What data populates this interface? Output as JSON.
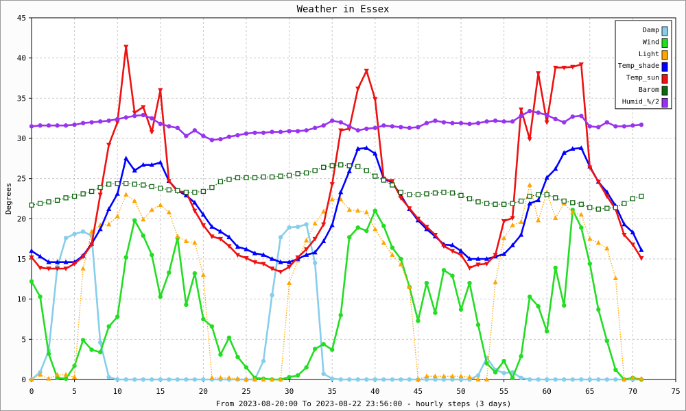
{
  "chart_data": {
    "type": "line",
    "title": "Weather in Essex",
    "xlabel": "From 2023-08-20:00 To 2023-08-22 23:56:00 - hourly steps (3 days)",
    "ylabel": "Degrees",
    "xlim": [
      0,
      75
    ],
    "ylim": [
      0,
      45
    ],
    "x_ticks": [
      0,
      5,
      10,
      15,
      20,
      25,
      30,
      35,
      40,
      45,
      50,
      55,
      60,
      65,
      70,
      75
    ],
    "y_ticks": [
      0,
      5,
      10,
      15,
      20,
      25,
      30,
      35,
      40,
      45
    ],
    "grid": true,
    "legend_position": "top-right",
    "series": [
      {
        "name": "Damp",
        "color": "#87ceeb",
        "marker": "circle",
        "style": "solid",
        "values": [
          0,
          0.9,
          3.6,
          14.0,
          17.6,
          18.1,
          18.4,
          17.9,
          4.6,
          0.3,
          0,
          0,
          0,
          0,
          0,
          0,
          0,
          0,
          0,
          0,
          0,
          0,
          0,
          0,
          0,
          0,
          0,
          2.3,
          10.5,
          17.7,
          18.9,
          19.0,
          19.3,
          14.5,
          0.7,
          0.1,
          0,
          0,
          0,
          0,
          0,
          0,
          0,
          0,
          0,
          0,
          0,
          0,
          0,
          0,
          0,
          0,
          0.5,
          2.7,
          1.2,
          0.8,
          0.9,
          0.2,
          0,
          0,
          0,
          0,
          0,
          0,
          0,
          0,
          0,
          0,
          0,
          0,
          0,
          0
        ]
      },
      {
        "name": "Wind",
        "color": "#22dd22",
        "marker": "circle",
        "style": "solid",
        "values": [
          12.2,
          10.3,
          3.2,
          0.2,
          0.1,
          1.7,
          4.9,
          3.7,
          3.4,
          6.6,
          7.8,
          15.2,
          19.8,
          17.9,
          15.5,
          10.3,
          13.3,
          17.6,
          9.3,
          13.2,
          7.5,
          6.6,
          3.1,
          5.2,
          2.8,
          1.5,
          0.2,
          0.1,
          0,
          0,
          0.3,
          0.5,
          1.5,
          3.8,
          4.4,
          3.7,
          8.0,
          17.7,
          18.9,
          18.5,
          21.0,
          19.1,
          16.4,
          15.0,
          11.5,
          7.3,
          12.0,
          8.3,
          13.6,
          12.9,
          8.7,
          12.0,
          6.8,
          2.0,
          0.9,
          2.3,
          0.2,
          2.9,
          10.3,
          9.1,
          6.0,
          13.9,
          9.2,
          21.1,
          18.9,
          14.4,
          8.7,
          4.8,
          1.2,
          0,
          0.2,
          0
        ]
      },
      {
        "name": "Light",
        "color": "#ffa500",
        "marker": "triangle-up",
        "style": "dotted",
        "values": [
          0,
          0.6,
          0.1,
          0.6,
          0.6,
          0.3,
          13.8,
          18.4,
          19.2,
          19.3,
          20.3,
          23.0,
          22.2,
          19.9,
          21.1,
          21.7,
          20.8,
          17.8,
          17.2,
          17.0,
          13.0,
          0.2,
          0.2,
          0.2,
          0.1,
          0,
          0,
          0,
          0,
          0,
          12.0,
          14.8,
          17.3,
          19.4,
          20.9,
          22.4,
          22.4,
          21.1,
          21.0,
          20.8,
          18.7,
          17.0,
          15.5,
          14.3,
          11.5,
          0,
          0.4,
          0.4,
          0.4,
          0.4,
          0.4,
          0.3,
          0,
          0,
          12.1,
          17.6,
          19.2,
          19.6,
          24.2,
          19.8,
          23.3,
          20.1,
          21.9,
          20.8,
          20.5,
          17.5,
          17.0,
          16.3,
          12.6,
          0,
          0.2,
          0.1
        ]
      },
      {
        "name": "Temp_shade",
        "color": "#0000ff",
        "marker": "triangle-up",
        "style": "solid",
        "values": [
          16.0,
          15.3,
          14.6,
          14.6,
          14.6,
          14.6,
          15.4,
          16.9,
          18.7,
          21.2,
          23.1,
          27.5,
          26.0,
          26.7,
          26.7,
          27.0,
          24.7,
          23.5,
          22.9,
          22.0,
          20.5,
          19.0,
          18.4,
          17.7,
          16.5,
          16.2,
          15.7,
          15.5,
          15.0,
          14.6,
          14.6,
          15.0,
          15.5,
          15.8,
          17.2,
          19.2,
          23.3,
          25.9,
          28.7,
          28.8,
          28.1,
          25.0,
          24.5,
          22.9,
          21.2,
          19.8,
          18.7,
          17.8,
          16.8,
          16.7,
          16.0,
          15.0,
          15.0,
          15.0,
          15.3,
          15.6,
          16.7,
          18.0,
          21.9,
          22.3,
          25.1,
          26.2,
          28.2,
          28.7,
          28.8,
          26.5,
          24.6,
          23.3,
          21.6,
          19.3,
          18.3,
          16.1
        ]
      },
      {
        "name": "Temp_sun",
        "color": "#ee1111",
        "marker": "triangle-down",
        "style": "solid",
        "values": [
          15.2,
          13.9,
          13.8,
          13.8,
          13.8,
          14.4,
          15.3,
          16.8,
          23.0,
          29.2,
          32.0,
          41.4,
          33.2,
          33.9,
          30.8,
          36.0,
          24.7,
          23.4,
          23.3,
          21.0,
          19.2,
          17.8,
          17.5,
          16.6,
          15.5,
          15.1,
          14.6,
          14.4,
          13.8,
          13.4,
          14.0,
          15.2,
          16.2,
          17.5,
          19.3,
          24.3,
          31.0,
          31.2,
          36.2,
          38.4,
          34.9,
          25.0,
          24.7,
          22.6,
          21.3,
          20.0,
          19.0,
          18.0,
          16.6,
          16.0,
          15.5,
          13.9,
          14.3,
          14.4,
          15.5,
          19.7,
          20.1,
          33.6,
          29.9,
          38.1,
          32.0,
          38.8,
          38.8,
          38.9,
          39.2,
          26.4,
          24.6,
          22.8,
          21.2,
          18.0,
          16.8,
          15.1
        ]
      },
      {
        "name": "Barom",
        "color": "#116611",
        "marker": "square",
        "style": "dotted",
        "values": [
          21.7,
          21.9,
          22.1,
          22.3,
          22.6,
          22.8,
          23.1,
          23.4,
          23.9,
          24.3,
          24.4,
          24.4,
          24.3,
          24.2,
          24.0,
          23.8,
          23.6,
          23.5,
          23.3,
          23.3,
          23.4,
          23.9,
          24.6,
          24.9,
          25.1,
          25.1,
          25.1,
          25.2,
          25.2,
          25.3,
          25.4,
          25.6,
          25.7,
          26.0,
          26.4,
          26.6,
          26.7,
          26.6,
          26.5,
          26.0,
          25.3,
          24.8,
          24.2,
          23.3,
          23.0,
          23.0,
          23.1,
          23.2,
          23.3,
          23.2,
          22.9,
          22.5,
          22.1,
          21.9,
          21.8,
          21.8,
          21.9,
          22.2,
          22.8,
          23.0,
          23.0,
          22.6,
          22.2,
          22.0,
          21.8,
          21.4,
          21.2,
          21.3,
          21.4,
          21.9,
          22.5,
          22.8
        ]
      },
      {
        "name": "Humid_%/2",
        "color": "#9933ee",
        "marker": "circle",
        "style": "solid",
        "values": [
          31.5,
          31.6,
          31.6,
          31.6,
          31.6,
          31.7,
          31.9,
          32.0,
          32.1,
          32.2,
          32.4,
          32.6,
          32.8,
          32.9,
          32.5,
          31.8,
          31.5,
          31.3,
          30.3,
          31.0,
          30.3,
          29.8,
          29.9,
          30.2,
          30.4,
          30.6,
          30.7,
          30.7,
          30.8,
          30.8,
          30.9,
          30.9,
          31.0,
          31.3,
          31.6,
          32.2,
          32.0,
          31.5,
          31.0,
          31.2,
          31.3,
          31.6,
          31.5,
          31.4,
          31.3,
          31.4,
          31.9,
          32.2,
          32.0,
          31.9,
          31.9,
          31.8,
          31.9,
          32.1,
          32.2,
          32.1,
          32.1,
          32.8,
          33.4,
          33.2,
          32.9,
          32.4,
          32.0,
          32.7,
          32.8,
          31.5,
          31.4,
          32.0,
          31.5,
          31.5,
          31.6,
          31.7
        ]
      }
    ]
  }
}
